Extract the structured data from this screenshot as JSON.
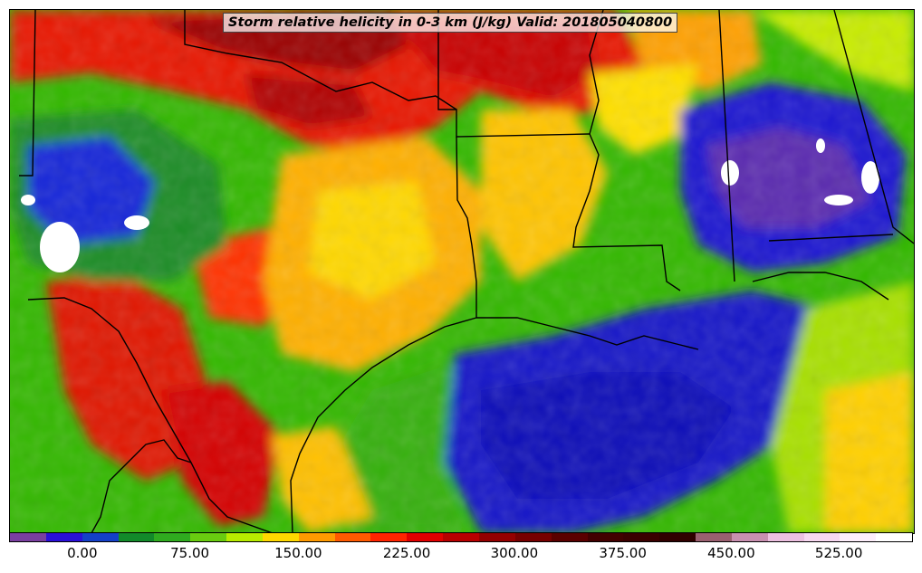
{
  "title": "Storm relative helicity in 0-3 km (J/kg) Valid: 201805040800",
  "colorbar": {
    "colors": [
      "#7a3fa0",
      "#2a10d8",
      "#1440c8",
      "#128a2a",
      "#2fab1f",
      "#69cc10",
      "#b8ec00",
      "#ffd800",
      "#ff9a00",
      "#ff5a00",
      "#ff2400",
      "#e00000",
      "#b80000",
      "#940000",
      "#760000",
      "#5a0000",
      "#420000",
      "#3a0000",
      "#300000",
      "#9a6070",
      "#c890b0",
      "#ecc0e0",
      "#f7d8f0",
      "#fdeefa",
      "#ffffff"
    ],
    "labels": [
      {
        "text": "0.00",
        "pos": 0.081
      },
      {
        "text": "75.00",
        "pos": 0.2
      },
      {
        "text": "150.00",
        "pos": 0.32
      },
      {
        "text": "225.00",
        "pos": 0.44
      },
      {
        "text": "300.00",
        "pos": 0.559
      },
      {
        "text": "375.00",
        "pos": 0.679
      },
      {
        "text": "450.00",
        "pos": 0.799
      },
      {
        "text": "525.00",
        "pos": 0.918
      }
    ]
  }
}
